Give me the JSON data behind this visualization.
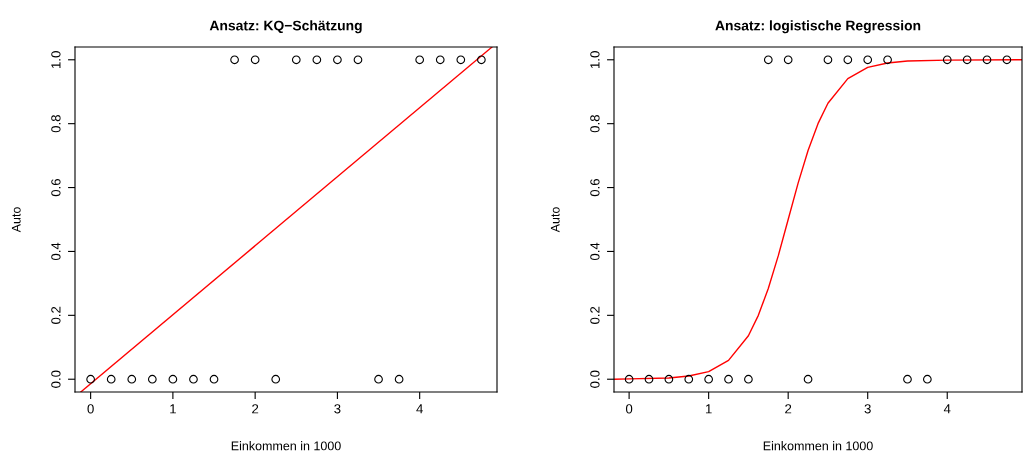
{
  "chart_data": [
    {
      "type": "scatter",
      "title": "Ansatz: KQ−Schätzung",
      "xlabel": "Einkommen in 1000",
      "ylabel": "Auto",
      "xlim": [
        -0.19,
        4.94
      ],
      "ylim": [
        -0.04,
        1.04
      ],
      "xticks": [
        0,
        1,
        2,
        3,
        4
      ],
      "yticks": [
        {
          "value": 0,
          "label": "0.0"
        },
        {
          "value": 0.2,
          "label": "0.2"
        },
        {
          "value": 0.4,
          "label": "0.4"
        },
        {
          "value": 0.6,
          "label": "0.6"
        },
        {
          "value": 0.8,
          "label": "0.8"
        },
        {
          "value": 1,
          "label": "1.0"
        }
      ],
      "grid": false,
      "legend": false,
      "series": [
        {
          "color": "#000000",
          "marker": "circle",
          "x": [
            0,
            0.25,
            0.5,
            0.75,
            1,
            1.25,
            1.5,
            1.75,
            2,
            2.25,
            2.5,
            2.75,
            3,
            3.25,
            3.5,
            3.75,
            4,
            4.25,
            4.5,
            4.75
          ],
          "values": [
            0,
            0,
            0,
            0,
            0,
            0,
            0,
            1,
            1,
            0,
            1,
            1,
            1,
            1,
            0,
            0,
            1,
            1,
            1,
            1
          ]
        },
        {
          "type": "line",
          "color": "#ff0000",
          "x": [
            -0.12,
            4.88
          ],
          "values": [
            -0.04,
            1.04
          ]
        }
      ]
    },
    {
      "type": "scatter",
      "title": "Ansatz: logistische Regression",
      "xlabel": "Einkommen in 1000",
      "ylabel": "Auto",
      "xlim": [
        -0.19,
        4.94
      ],
      "ylim": [
        -0.04,
        1.04
      ],
      "xticks": [
        0,
        1,
        2,
        3,
        4
      ],
      "yticks": [
        {
          "value": 0,
          "label": "0.0"
        },
        {
          "value": 0.2,
          "label": "0.2"
        },
        {
          "value": 0.4,
          "label": "0.4"
        },
        {
          "value": 0.6,
          "label": "0.6"
        },
        {
          "value": 0.8,
          "label": "0.8"
        },
        {
          "value": 1,
          "label": "1.0"
        }
      ],
      "grid": false,
      "legend": false,
      "series": [
        {
          "color": "#000000",
          "marker": "circle",
          "x": [
            0,
            0.25,
            0.5,
            0.75,
            1,
            1.25,
            1.5,
            1.75,
            2,
            2.25,
            2.5,
            2.75,
            3,
            3.25,
            3.5,
            3.75,
            4,
            4.25,
            4.5,
            4.75
          ],
          "values": [
            0,
            0,
            0,
            0,
            0,
            0,
            0,
            1,
            1,
            0,
            1,
            1,
            1,
            1,
            0,
            0,
            1,
            1,
            1,
            1
          ]
        },
        {
          "type": "line",
          "color": "#ff0000",
          "x": [
            -0.19,
            0,
            0.5,
            0.75,
            1,
            1.25,
            1.5,
            1.625,
            1.75,
            1.875,
            2,
            2.125,
            2.25,
            2.375,
            2.5,
            2.75,
            3,
            3.25,
            3.5,
            4,
            4.94
          ],
          "values": [
            0,
            0.001,
            0.004,
            0.01,
            0.024,
            0.059,
            0.136,
            0.2,
            0.284,
            0.386,
            0.5,
            0.614,
            0.716,
            0.8,
            0.864,
            0.941,
            0.976,
            0.99,
            0.996,
            0.999,
            1.0
          ]
        }
      ]
    }
  ]
}
